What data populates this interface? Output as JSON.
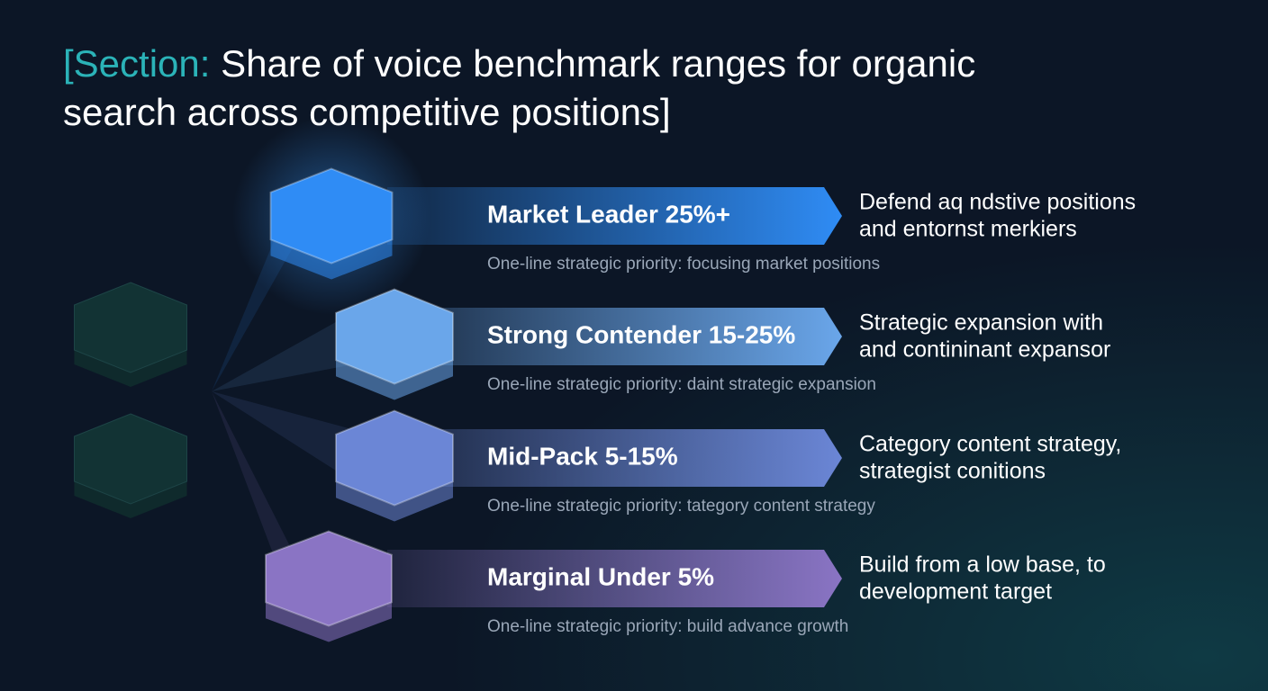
{
  "title": {
    "label": "[Section:",
    "text": "Share of voice benchmark ranges for organic search across competitive positions]"
  },
  "tiers": [
    {
      "name": "Market Leader 25%+",
      "priority": "One-line strategic priority:  focusing market positions",
      "description": [
        "Defend aq ndstive positions",
        "and entornst merkiers"
      ],
      "color": "#2f8cf5"
    },
    {
      "name": "Strong Contender 15-25%",
      "priority": "One-line strategic priority: daint strategic expansion",
      "description": [
        "Strategic expansion with",
        "and contininant expansor"
      ],
      "color": "#6aa6ea"
    },
    {
      "name": "Mid-Pack 5-15%",
      "priority": "One-line strategic priority: tategory content strategy",
      "description": [
        "Category content strategy,",
        "strategist conitions"
      ],
      "color": "#6b86d6"
    },
    {
      "name": "Marginal Under 5%",
      "priority": "One-line strategic priority: build advance growth",
      "description": [
        "Build from a low base, to",
        "development target"
      ],
      "color": "#8a74c4"
    }
  ]
}
